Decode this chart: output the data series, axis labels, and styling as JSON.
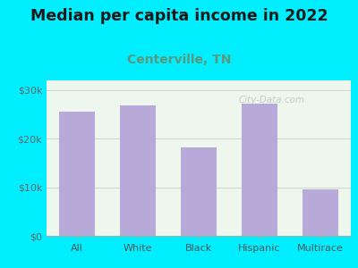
{
  "title": "Median per capita income in 2022",
  "subtitle": "Centerville, TN",
  "categories": [
    "All",
    "White",
    "Black",
    "Hispanic",
    "Multirace"
  ],
  "values": [
    25500,
    26800,
    18200,
    27200,
    9500
  ],
  "bar_color": "#b8aad8",
  "background_outer": "#00eeff",
  "background_inner": "#edf7ee",
  "title_fontsize": 12.5,
  "subtitle_fontsize": 10,
  "subtitle_color": "#5a9a7a",
  "tick_color": "#555555",
  "ytick_color": "#666666",
  "ylim": [
    0,
    32000
  ],
  "yticks": [
    0,
    10000,
    20000,
    30000
  ],
  "watermark": "City-Data.com"
}
